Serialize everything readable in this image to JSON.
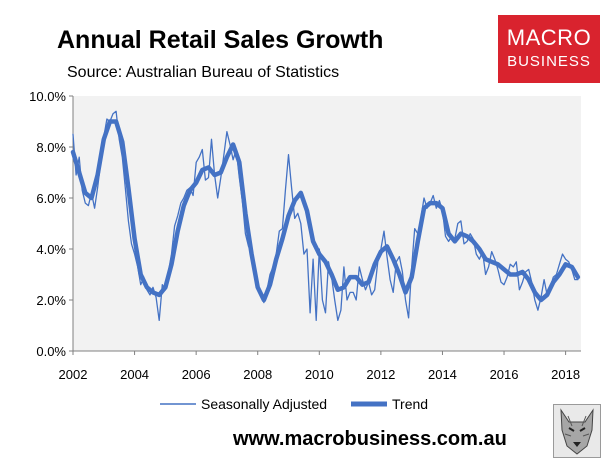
{
  "header": {
    "title": "Annual Retail Sales Growth",
    "subtitle": "Source: Australian Bureau of Statistics"
  },
  "logo": {
    "line1": "MACRO",
    "line2": "BUSINESS"
  },
  "footer": {
    "url": "www.macrobusiness.com.au"
  },
  "colors": {
    "series": "#4472c4",
    "logo_bg": "#d9232e",
    "plot_bg": "#f2f2f2"
  },
  "chart_data": {
    "type": "line",
    "title": "Annual Retail Sales Growth",
    "subtitle": "Source: Australian Bureau of Statistics",
    "xlabel": "",
    "ylabel": "",
    "xlim": [
      2002.0,
      2018.5
    ],
    "ylim": [
      0,
      10
    ],
    "x_ticks": [
      2002,
      2004,
      2006,
      2008,
      2010,
      2012,
      2014,
      2016,
      2018
    ],
    "y_ticks": [
      0,
      2,
      4,
      6,
      8,
      10
    ],
    "y_tick_labels": [
      "0.0%",
      "2.0%",
      "4.0%",
      "6.0%",
      "8.0%",
      "10.0%"
    ],
    "grid": false,
    "legend": "bottom-center",
    "series": [
      {
        "name": "Seasonally Adjusted",
        "style": "thin",
        "x": [
          2002.0,
          2002.1,
          2002.2,
          2002.3,
          2002.4,
          2002.5,
          2002.6,
          2002.7,
          2002.8,
          2002.9,
          2003.0,
          2003.1,
          2003.2,
          2003.3,
          2003.4,
          2003.5,
          2003.6,
          2003.7,
          2003.8,
          2003.9,
          2004.0,
          2004.1,
          2004.2,
          2004.3,
          2004.4,
          2004.5,
          2004.6,
          2004.7,
          2004.8,
          2004.9,
          2005.0,
          2005.1,
          2005.2,
          2005.3,
          2005.4,
          2005.5,
          2005.6,
          2005.7,
          2005.8,
          2005.9,
          2006.0,
          2006.1,
          2006.2,
          2006.3,
          2006.4,
          2006.5,
          2006.6,
          2006.7,
          2006.8,
          2006.9,
          2007.0,
          2007.1,
          2007.2,
          2007.3,
          2007.4,
          2007.5,
          2007.6,
          2007.7,
          2007.8,
          2007.9,
          2008.0,
          2008.1,
          2008.2,
          2008.3,
          2008.4,
          2008.5,
          2008.6,
          2008.7,
          2008.8,
          2008.9,
          2009.0,
          2009.1,
          2009.2,
          2009.3,
          2009.4,
          2009.5,
          2009.6,
          2009.7,
          2009.8,
          2009.9,
          2010.0,
          2010.1,
          2010.2,
          2010.3,
          2010.4,
          2010.5,
          2010.6,
          2010.7,
          2010.8,
          2010.9,
          2011.0,
          2011.1,
          2011.2,
          2011.3,
          2011.4,
          2011.5,
          2011.6,
          2011.7,
          2011.8,
          2011.9,
          2012.0,
          2012.1,
          2012.2,
          2012.3,
          2012.4,
          2012.5,
          2012.6,
          2012.7,
          2012.8,
          2012.9,
          2013.0,
          2013.1,
          2013.2,
          2013.3,
          2013.4,
          2013.5,
          2013.6,
          2013.7,
          2013.8,
          2013.9,
          2014.0,
          2014.1,
          2014.2,
          2014.3,
          2014.4,
          2014.5,
          2014.6,
          2014.7,
          2014.8,
          2014.9,
          2015.0,
          2015.1,
          2015.2,
          2015.3,
          2015.4,
          2015.5,
          2015.6,
          2015.7,
          2015.8,
          2015.9,
          2016.0,
          2016.1,
          2016.2,
          2016.3,
          2016.4,
          2016.5,
          2016.6,
          2016.7,
          2016.8,
          2016.9,
          2017.0,
          2017.1,
          2017.2,
          2017.3,
          2017.4,
          2017.5,
          2017.6,
          2017.7,
          2017.8,
          2017.9,
          2018.0,
          2018.1,
          2018.2,
          2018.3,
          2018.4
        ],
        "values": [
          8.5,
          6.9,
          7.6,
          6.3,
          5.8,
          5.7,
          6.2,
          5.6,
          6.4,
          7.4,
          8.4,
          9.1,
          9.0,
          9.3,
          9.4,
          8.3,
          7.6,
          6.4,
          5.1,
          4.2,
          3.8,
          3.3,
          2.6,
          2.9,
          2.4,
          2.2,
          2.5,
          2.1,
          1.2,
          2.6,
          2.4,
          3.1,
          3.8,
          4.9,
          5.3,
          5.8,
          6.0,
          6.3,
          6.4,
          6.1,
          7.4,
          7.6,
          7.9,
          6.7,
          6.8,
          8.3,
          6.9,
          6.0,
          6.8,
          7.7,
          8.6,
          8.1,
          7.5,
          7.9,
          6.8,
          5.9,
          4.6,
          4.1,
          3.9,
          3.1,
          2.6,
          2.2,
          1.9,
          2.4,
          3.0,
          3.3,
          3.8,
          4.7,
          4.8,
          6.3,
          7.7,
          6.4,
          5.2,
          5.4,
          5.0,
          3.8,
          4.0,
          1.5,
          3.6,
          1.2,
          4.0,
          2.0,
          1.5,
          3.5,
          2.9,
          2.0,
          1.2,
          1.6,
          3.3,
          2.0,
          2.3,
          2.3,
          2.0,
          3.3,
          2.8,
          2.4,
          2.7,
          2.2,
          2.4,
          3.5,
          4.0,
          4.7,
          3.7,
          2.8,
          2.3,
          3.5,
          3.7,
          3.1,
          2.0,
          1.3,
          3.3,
          4.8,
          4.6,
          5.2,
          6.0,
          5.6,
          5.8,
          6.1,
          5.6,
          5.9,
          5.5,
          4.5,
          4.3,
          4.5,
          4.4,
          5.0,
          5.1,
          4.2,
          4.3,
          4.6,
          4.4,
          3.8,
          3.6,
          3.9,
          3.0,
          3.3,
          3.9,
          3.6,
          3.2,
          2.7,
          2.6,
          2.9,
          3.4,
          3.3,
          3.5,
          2.4,
          2.7,
          3.1,
          3.2,
          2.7,
          2.0,
          1.6,
          2.1,
          2.8,
          2.2,
          2.5,
          2.9,
          3.0,
          3.4,
          3.8,
          3.6,
          3.5,
          3.2,
          2.8,
          2.8
        ],
        "color": "#4472c4"
      },
      {
        "name": "Trend",
        "style": "thick",
        "x": [
          2002.0,
          2002.2,
          2002.4,
          2002.6,
          2002.8,
          2003.0,
          2003.2,
          2003.4,
          2003.6,
          2003.8,
          2004.0,
          2004.2,
          2004.4,
          2004.6,
          2004.8,
          2005.0,
          2005.2,
          2005.4,
          2005.6,
          2005.8,
          2006.0,
          2006.2,
          2006.4,
          2006.6,
          2006.8,
          2007.0,
          2007.2,
          2007.4,
          2007.6,
          2007.8,
          2008.0,
          2008.2,
          2008.4,
          2008.6,
          2008.8,
          2009.0,
          2009.2,
          2009.4,
          2009.6,
          2009.8,
          2010.0,
          2010.2,
          2010.4,
          2010.6,
          2010.8,
          2011.0,
          2011.2,
          2011.4,
          2011.6,
          2011.8,
          2012.0,
          2012.2,
          2012.4,
          2012.6,
          2012.8,
          2013.0,
          2013.2,
          2013.4,
          2013.6,
          2013.8,
          2014.0,
          2014.2,
          2014.4,
          2014.6,
          2014.8,
          2015.0,
          2015.2,
          2015.4,
          2015.6,
          2015.8,
          2016.0,
          2016.2,
          2016.4,
          2016.6,
          2016.8,
          2017.0,
          2017.2,
          2017.4,
          2017.6,
          2017.8,
          2018.0,
          2018.2,
          2018.4
        ],
        "values": [
          7.8,
          7.0,
          6.2,
          6.0,
          6.9,
          8.3,
          9.0,
          9.0,
          8.2,
          6.4,
          4.4,
          3.0,
          2.5,
          2.3,
          2.2,
          2.5,
          3.4,
          4.7,
          5.7,
          6.3,
          6.6,
          7.1,
          7.2,
          6.9,
          7.0,
          7.6,
          8.1,
          7.4,
          5.4,
          3.8,
          2.5,
          2.0,
          2.6,
          3.6,
          4.4,
          5.3,
          5.9,
          6.2,
          5.5,
          4.3,
          3.8,
          3.5,
          3.0,
          2.4,
          2.5,
          2.9,
          2.9,
          2.6,
          2.7,
          3.4,
          3.9,
          4.1,
          3.6,
          3.0,
          2.3,
          2.9,
          4.3,
          5.6,
          5.8,
          5.8,
          5.6,
          4.6,
          4.3,
          4.6,
          4.5,
          4.3,
          4.0,
          3.6,
          3.5,
          3.4,
          3.2,
          3.0,
          3.0,
          3.1,
          2.8,
          2.3,
          2.0,
          2.2,
          2.7,
          3.0,
          3.4,
          3.3,
          2.9
        ],
        "color": "#4472c4"
      }
    ]
  }
}
